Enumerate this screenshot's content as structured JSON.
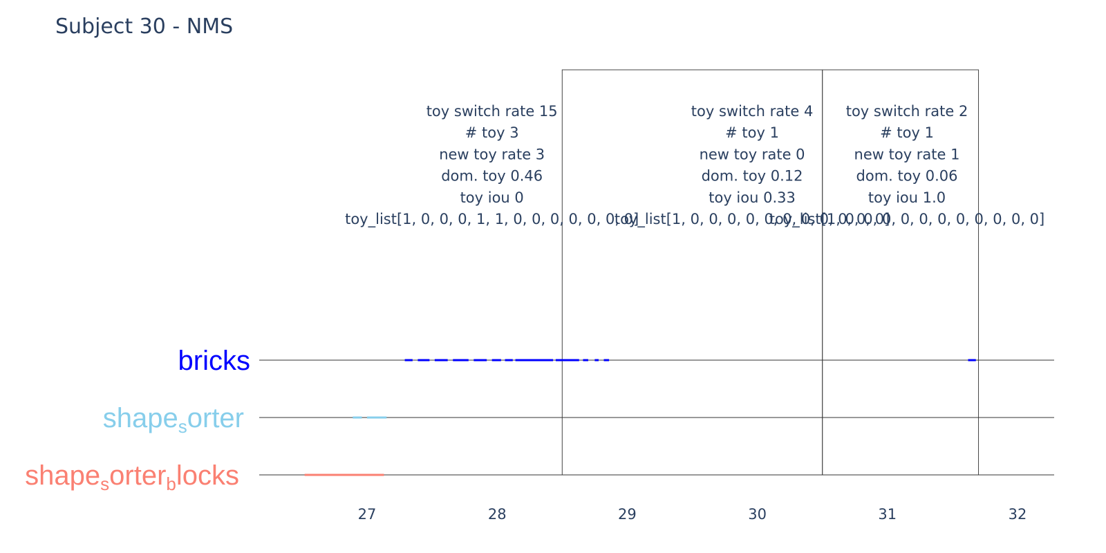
{
  "chart_data": {
    "type": "timeline",
    "title": "Subject 30 - NMS",
    "x_ticks": [
      27,
      28,
      29,
      30,
      31,
      32
    ],
    "xlim": [
      26.35,
      32.3
    ],
    "rows": [
      {
        "label": "bricks",
        "color": "#0000ff",
        "segments": [
          [
            27.29,
            27.35
          ],
          [
            27.39,
            27.48
          ],
          [
            27.52,
            27.62
          ],
          [
            27.66,
            27.78
          ],
          [
            27.82,
            27.92
          ],
          [
            27.96,
            28.03
          ],
          [
            28.06,
            28.12
          ],
          [
            28.14,
            28.43
          ],
          [
            28.45,
            28.63
          ],
          [
            28.66,
            28.7
          ],
          [
            28.75,
            28.78
          ],
          [
            28.82,
            28.86
          ],
          [
            31.62,
            31.68
          ]
        ]
      },
      {
        "label": "shape_sorter",
        "label_parts": [
          [
            "shape",
            ""
          ],
          [
            "s",
            "sub"
          ],
          [
            "orter",
            ""
          ]
        ],
        "color": "#87ceeb",
        "segments": [
          [
            26.89,
            26.96
          ],
          [
            27.0,
            27.15
          ]
        ]
      },
      {
        "label": "shape_sorter_blocks",
        "label_parts": [
          [
            "shape",
            ""
          ],
          [
            "s",
            "sub"
          ],
          [
            "orter",
            ""
          ],
          [
            "b",
            "sub"
          ],
          [
            "locks",
            ""
          ]
        ],
        "color": "#fa8072",
        "segments": [
          [
            26.52,
            27.13
          ]
        ]
      }
    ],
    "windows": [
      {
        "range": [
          28.5,
          30.5
        ],
        "annotation": [
          "toy switch rate 15",
          "# toy 3",
          "new toy rate 3",
          "dom. toy 0.46",
          "toy iou 0",
          "toy_list[1, 0, 0, 0, 1, 1, 0, 0, 0, 0, 0, 0, 0]"
        ]
      },
      {
        "range": [
          30.5,
          31.7
        ],
        "annotation": [
          "toy switch rate 4",
          "# toy 1",
          "new toy rate 0",
          "dom. toy 0.12",
          "toy iou 0.33",
          "toy_list[1, 0, 0, 0, 0, 0, 0, 0, 0, 0, 0, 0]"
        ]
      },
      {
        "range": [
          31.7,
          31.7
        ],
        "annotation": [
          "toy switch rate 2",
          "# toy 1",
          "new toy rate 1",
          "dom. toy 0.06",
          "toy iou 1.0",
          "toy_list[1, 0, 0, 0, 0, 0, 0, 0, 0, 0, 0, 0]"
        ]
      }
    ],
    "annotation_x": [
      27.96,
      29.96,
      31.15
    ]
  }
}
